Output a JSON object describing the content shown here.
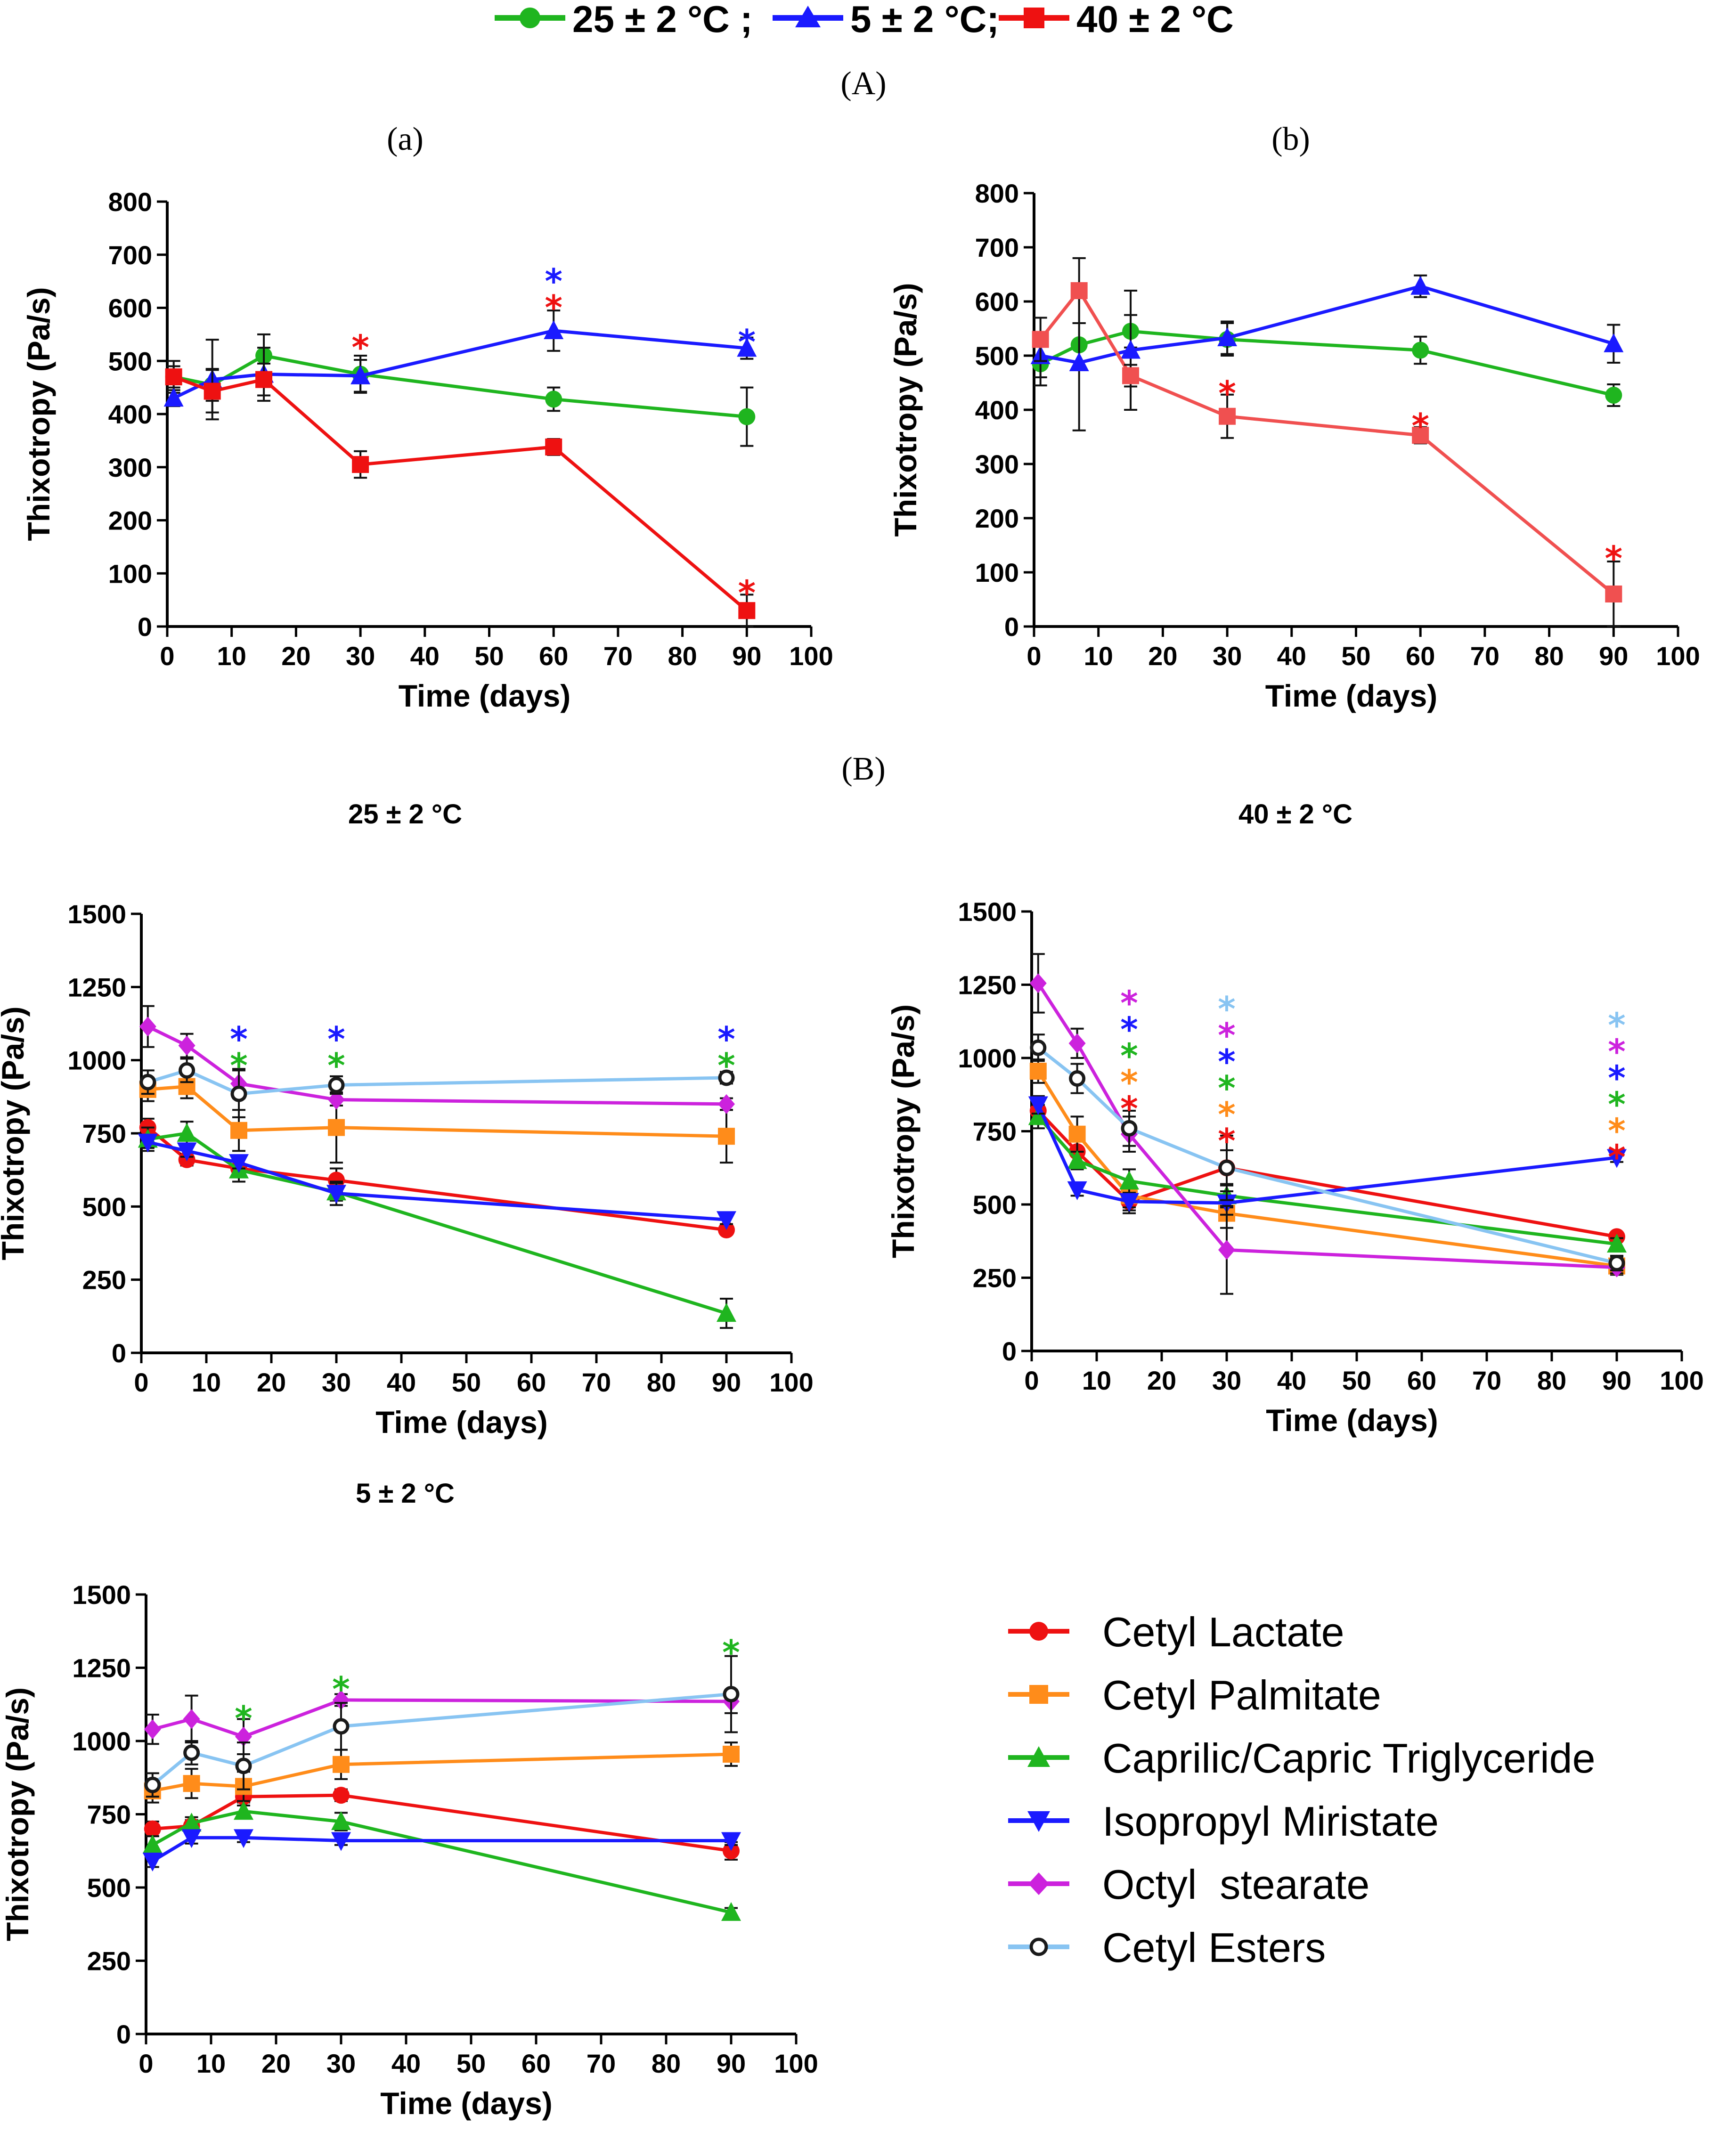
{
  "top_legend": {
    "entries": [
      {
        "label": "25 ± 2 °C ;",
        "color": "#1fb51f",
        "marker": "circle"
      },
      {
        "label": "5 ± 2 °C;",
        "color": "#1a1aff",
        "marker": "triangle-up"
      },
      {
        "label": "40 ± 2 °C",
        "color": "#ee1111",
        "marker": "square"
      }
    ]
  },
  "section_labels": {
    "A": "(A)",
    "B": "(B)"
  },
  "panel_labels": {
    "a": "(a)",
    "b": "(b)",
    "c": "25 ± 2 °C",
    "d": "40 ± 2 °C",
    "e": "5 ± 2 °C"
  },
  "chart_data": [
    {
      "id": "a",
      "type": "line",
      "title": "(a)",
      "xlabel": "Time (days)",
      "ylabel": "Thixotropy (Pa/s)",
      "xlim": [
        0,
        100
      ],
      "ylim": [
        0,
        800
      ],
      "xticks": [
        0,
        10,
        20,
        30,
        40,
        50,
        60,
        70,
        80,
        90,
        100
      ],
      "yticks": [
        0,
        100,
        200,
        300,
        400,
        500,
        600,
        700,
        800
      ],
      "series": [
        {
          "name": "25 ± 2 °C",
          "color": "#1fb51f",
          "marker": "circle",
          "x": [
            1,
            7,
            15,
            30,
            60,
            90
          ],
          "y": [
            470,
            455,
            510,
            475,
            428,
            395
          ],
          "err": [
            30,
            30,
            40,
            35,
            22,
            55
          ]
        },
        {
          "name": "5 ± 2 °C",
          "color": "#1a1aff",
          "marker": "triangle-up",
          "x": [
            1,
            7,
            15,
            30,
            60,
            90
          ],
          "y": [
            430,
            465,
            475,
            472,
            557,
            524
          ],
          "err": [
            15,
            75,
            50,
            30,
            38,
            20
          ]
        },
        {
          "name": "40 ± 2 °C",
          "color": "#ee1111",
          "marker": "square",
          "x": [
            1,
            7,
            15,
            30,
            60,
            90
          ],
          "y": [
            470,
            443,
            465,
            305,
            338,
            30
          ],
          "err": [
            20,
            40,
            30,
            25,
            15,
            30
          ]
        }
      ],
      "significance": [
        {
          "x": 30,
          "y": 530,
          "colors": [
            "#ee1111"
          ]
        },
        {
          "x": 60,
          "y": 605,
          "colors": [
            "#ee1111",
            "#1a1aff"
          ]
        },
        {
          "x": 90,
          "y": 540,
          "colors": [
            "#1a1aff"
          ]
        },
        {
          "x": 90,
          "y": 68,
          "colors": [
            "#ee1111"
          ]
        }
      ]
    },
    {
      "id": "b",
      "type": "line",
      "title": "(b)",
      "xlabel": "Time (days)",
      "ylabel": "Thixotropy (Pa/s)",
      "xlim": [
        0,
        100
      ],
      "ylim": [
        0,
        800
      ],
      "xticks": [
        0,
        10,
        20,
        30,
        40,
        50,
        60,
        70,
        80,
        90,
        100
      ],
      "yticks": [
        0,
        100,
        200,
        300,
        400,
        500,
        600,
        700,
        800
      ],
      "series": [
        {
          "name": "25 ± 2 °C",
          "color": "#1fb51f",
          "marker": "circle",
          "x": [
            1,
            7,
            15,
            30,
            60,
            90
          ],
          "y": [
            485,
            520,
            545,
            530,
            510,
            427
          ],
          "err": [
            40,
            40,
            30,
            30,
            25,
            20
          ]
        },
        {
          "name": "5 ± 2 °C",
          "color": "#1a1aff",
          "marker": "triangle-up",
          "x": [
            1,
            7,
            15,
            30,
            60,
            90
          ],
          "y": [
            500,
            487,
            510,
            533,
            628,
            522
          ],
          "err": [
            40,
            125,
            110,
            30,
            20,
            35
          ]
        },
        {
          "name": "40 ± 2 °C",
          "color": "#f05050",
          "marker": "square",
          "x": [
            1,
            7,
            15,
            30,
            60,
            90
          ],
          "y": [
            530,
            620,
            463,
            388,
            353,
            60
          ],
          "err": [
            40,
            60,
            20,
            40,
            15,
            60
          ]
        }
      ],
      "significance": [
        {
          "x": 30,
          "y": 435,
          "colors": [
            "#ee1111"
          ]
        },
        {
          "x": 60,
          "y": 375,
          "colors": [
            "#ee1111"
          ]
        },
        {
          "x": 90,
          "y": 130,
          "colors": [
            "#ee1111"
          ]
        }
      ]
    },
    {
      "id": "c",
      "type": "line",
      "title": "25 ± 2 °C",
      "xlabel": "Time (days)",
      "ylabel": "Thixotropy (Pa/s)",
      "xlim": [
        0,
        100
      ],
      "ylim": [
        0,
        1500
      ],
      "xticks": [
        0,
        10,
        20,
        30,
        40,
        50,
        60,
        70,
        80,
        90,
        100
      ],
      "yticks": [
        0,
        250,
        500,
        750,
        1000,
        1250,
        1500
      ],
      "series": [
        {
          "name": "Cetyl Lactate",
          "color": "#ee1111",
          "marker": "circle",
          "x": [
            1,
            7,
            15,
            30,
            90
          ],
          "y": [
            770,
            660,
            630,
            590,
            420
          ],
          "err": [
            30,
            20,
            30,
            40,
            15
          ]
        },
        {
          "name": "Cetyl Palmitate",
          "color": "#ff8c1a",
          "marker": "square",
          "x": [
            1,
            7,
            15,
            30,
            90
          ],
          "y": [
            900,
            910,
            760,
            770,
            740
          ],
          "err": [
            40,
            40,
            70,
            120,
            90
          ]
        },
        {
          "name": "Caprilic/Capric Triglyceride",
          "color": "#1fb51f",
          "marker": "triangle-up",
          "x": [
            1,
            7,
            15,
            30,
            90
          ],
          "y": [
            730,
            750,
            625,
            550,
            135
          ],
          "err": [
            40,
            40,
            40,
            30,
            50
          ]
        },
        {
          "name": "Isopropyl Miristate",
          "color": "#1a1aff",
          "marker": "triangle-down",
          "x": [
            1,
            7,
            15,
            30,
            90
          ],
          "y": [
            720,
            690,
            650,
            545,
            455
          ],
          "err": [
            20,
            20,
            20,
            40,
            15
          ]
        },
        {
          "name": "Octyl  stearate",
          "color": "#cc22dd",
          "marker": "diamond",
          "x": [
            1,
            7,
            15,
            30,
            90
          ],
          "y": [
            1115,
            1050,
            920,
            865,
            850
          ],
          "err": [
            70,
            40,
            50,
            20,
            20
          ]
        },
        {
          "name": "Cetyl Esters",
          "color": "#88c4f2",
          "marker": "open-circle",
          "x": [
            1,
            7,
            15,
            30,
            90
          ],
          "y": [
            925,
            965,
            885,
            915,
            940
          ],
          "err": [
            40,
            40,
            80,
            30,
            20
          ]
        }
      ],
      "significance": [
        {
          "x": 15,
          "y": 990,
          "colors": [
            "#1fb51f",
            "#1a1aff"
          ]
        },
        {
          "x": 30,
          "y": 990,
          "colors": [
            "#1fb51f",
            "#1a1aff"
          ]
        },
        {
          "x": 90,
          "y": 990,
          "colors": [
            "#1fb51f",
            "#1a1aff"
          ]
        }
      ]
    },
    {
      "id": "d",
      "type": "line",
      "title": "40 ± 2 °C",
      "xlabel": "Time (days)",
      "ylabel": "Thixotropy (Pa/s)",
      "xlim": [
        0,
        100
      ],
      "ylim": [
        0,
        1500
      ],
      "xticks": [
        0,
        10,
        20,
        30,
        40,
        50,
        60,
        70,
        80,
        90,
        100
      ],
      "yticks": [
        0,
        250,
        500,
        750,
        1000,
        1250,
        1500
      ],
      "series": [
        {
          "name": "Cetyl Lactate",
          "color": "#ee1111",
          "marker": "circle",
          "x": [
            1,
            7,
            15,
            30,
            90
          ],
          "y": [
            820,
            680,
            510,
            625,
            390
          ],
          "err": [
            40,
            40,
            40,
            60,
            15
          ]
        },
        {
          "name": "Cetyl Palmitate",
          "color": "#ff8c1a",
          "marker": "square",
          "x": [
            1,
            7,
            15,
            30,
            90
          ],
          "y": [
            955,
            740,
            530,
            470,
            290
          ],
          "err": [
            40,
            60,
            40,
            50,
            30
          ]
        },
        {
          "name": "Caprilic/Capric Triglyceride",
          "color": "#1fb51f",
          "marker": "triangle-up",
          "x": [
            1,
            7,
            15,
            30,
            90
          ],
          "y": [
            800,
            650,
            580,
            530,
            365
          ],
          "err": [
            40,
            30,
            40,
            40,
            20
          ]
        },
        {
          "name": "Isopropyl Miristate",
          "color": "#1a1aff",
          "marker": "triangle-down",
          "x": [
            1,
            7,
            15,
            30,
            90
          ],
          "y": [
            840,
            550,
            510,
            505,
            660
          ],
          "err": [
            30,
            20,
            30,
            40,
            15
          ]
        },
        {
          "name": "Octyl  stearate",
          "color": "#cc22dd",
          "marker": "diamond",
          "x": [
            1,
            7,
            15,
            30,
            90
          ],
          "y": [
            1255,
            1050,
            740,
            345,
            285
          ],
          "err": [
            100,
            50,
            60,
            150,
            20
          ]
        },
        {
          "name": "Cetyl Esters",
          "color": "#88c4f2",
          "marker": "open-circle",
          "x": [
            1,
            7,
            15,
            30,
            90
          ],
          "y": [
            1035,
            930,
            760,
            625,
            300
          ],
          "err": [
            45,
            50,
            60,
            110,
            25
          ]
        }
      ],
      "significance": [
        {
          "x": 15,
          "y": 835,
          "colors": [
            "#ee1111",
            "#ff8c1a",
            "#1fb51f",
            "#1a1aff",
            "#cc22dd"
          ]
        },
        {
          "x": 30,
          "y": 725,
          "colors": [
            "#ee1111",
            "#ff8c1a",
            "#1fb51f",
            "#1a1aff",
            "#cc22dd",
            "#88c4f2"
          ]
        },
        {
          "x": 90,
          "y": 670,
          "colors": [
            "#ee1111",
            "#ff8c1a",
            "#1fb51f",
            "#1a1aff",
            "#cc22dd",
            "#88c4f2"
          ]
        }
      ]
    },
    {
      "id": "e",
      "type": "line",
      "title": "5 ± 2 °C",
      "xlabel": "Time (days)",
      "ylabel": "Thixotropy (Pa/s)",
      "xlim": [
        0,
        100
      ],
      "ylim": [
        0,
        1500
      ],
      "xticks": [
        0,
        10,
        20,
        30,
        40,
        50,
        60,
        70,
        80,
        90,
        100
      ],
      "yticks": [
        0,
        250,
        500,
        750,
        1000,
        1250,
        1500
      ],
      "series": [
        {
          "name": "Cetyl Lactate",
          "color": "#ee1111",
          "marker": "circle",
          "x": [
            1,
            7,
            15,
            30,
            90
          ],
          "y": [
            700,
            710,
            810,
            815,
            625
          ],
          "err": [
            25,
            20,
            20,
            20,
            30
          ]
        },
        {
          "name": "Cetyl Palmitate",
          "color": "#ff8c1a",
          "marker": "square",
          "x": [
            1,
            7,
            15,
            30,
            90
          ],
          "y": [
            830,
            855,
            845,
            920,
            955
          ],
          "err": [
            40,
            50,
            50,
            50,
            40
          ]
        },
        {
          "name": "Caprilic/Capric Triglyceride",
          "color": "#1fb51f",
          "marker": "triangle-up",
          "x": [
            1,
            7,
            15,
            30,
            90
          ],
          "y": [
            645,
            720,
            760,
            725,
            415
          ],
          "err": [
            30,
            20,
            20,
            30,
            15
          ]
        },
        {
          "name": "Isopropyl Miristate",
          "color": "#1a1aff",
          "marker": "triangle-down",
          "x": [
            1,
            7,
            15,
            30,
            90
          ],
          "y": [
            590,
            670,
            670,
            660,
            660
          ],
          "err": [
            20,
            20,
            15,
            15,
            15
          ]
        },
        {
          "name": "Octyl  stearate",
          "color": "#cc22dd",
          "marker": "diamond",
          "x": [
            1,
            7,
            15,
            30,
            90
          ],
          "y": [
            1040,
            1075,
            1015,
            1140,
            1135
          ],
          "err": [
            50,
            80,
            60,
            20,
            40
          ]
        },
        {
          "name": "Cetyl Esters",
          "color": "#88c4f2",
          "marker": "open-circle",
          "x": [
            1,
            7,
            15,
            30,
            90
          ],
          "y": [
            850,
            960,
            915,
            1050,
            1160
          ],
          "err": [
            40,
            40,
            80,
            80,
            130
          ]
        }
      ],
      "significance": [
        {
          "x": 15,
          "y": 1085,
          "colors": [
            "#1fb51f"
          ]
        },
        {
          "x": 30,
          "y": 1185,
          "colors": [
            "#1fb51f"
          ]
        },
        {
          "x": 90,
          "y": 1310,
          "colors": [
            "#1fb51f"
          ]
        }
      ]
    }
  ],
  "legend": {
    "entries": [
      {
        "label": "Cetyl Lactate",
        "color": "#ee1111",
        "marker": "circle"
      },
      {
        "label": "Cetyl Palmitate",
        "color": "#ff8c1a",
        "marker": "square"
      },
      {
        "label": "Caprilic/Capric Triglyceride",
        "color": "#1fb51f",
        "marker": "triangle-up"
      },
      {
        "label": "Isopropyl Miristate",
        "color": "#1a1aff",
        "marker": "triangle-down"
      },
      {
        "label": "Octyl  stearate",
        "color": "#cc22dd",
        "marker": "diamond"
      },
      {
        "label": "Cetyl Esters",
        "color": "#88c4f2",
        "marker": "open-circle"
      }
    ]
  }
}
